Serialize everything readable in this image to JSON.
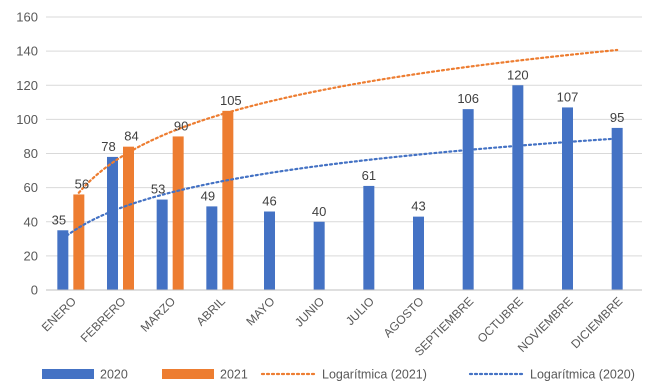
{
  "chart_data": {
    "type": "bar",
    "categories": [
      "ENERO",
      "FEBRERO",
      "MARZO",
      "ABRIL",
      "MAYO",
      "JUNIO",
      "JULIO",
      "AGOSTO",
      "SEPTIEMBRE",
      "OCTUBRE",
      "NOVIEMBRE",
      "DICIEMBRE"
    ],
    "series": [
      {
        "name": "2020",
        "color": "#4472C4",
        "values": [
          35,
          78,
          53,
          49,
          46,
          40,
          61,
          43,
          106,
          120,
          107,
          95
        ]
      },
      {
        "name": "2021",
        "color": "#ED7D31",
        "values": [
          56,
          84,
          90,
          105,
          null,
          null,
          null,
          null,
          null,
          null,
          null,
          null
        ]
      }
    ],
    "trendlines": [
      {
        "name": "Logarítmica (2021)",
        "type": "logarithmic",
        "of_series": "2021",
        "color": "#ED7D31",
        "style": "dotted"
      },
      {
        "name": "Logarítmica (2020)",
        "type": "logarithmic",
        "of_series": "2020",
        "color": "#4472C4",
        "style": "dotted"
      }
    ],
    "y_ticks": [
      "0",
      "20",
      "40",
      "60",
      "80",
      "100",
      "120",
      "140",
      "160"
    ],
    "ylim": [
      0,
      160
    ],
    "grid": true,
    "legend": "bottom",
    "data_labels": true
  }
}
